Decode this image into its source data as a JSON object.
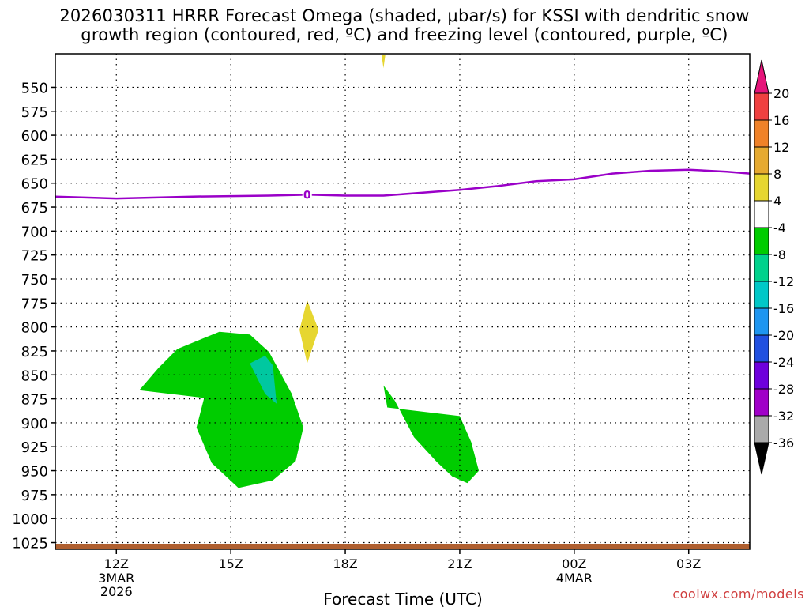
{
  "chart_data": {
    "type": "heatmap",
    "title_lines": [
      "2026030311 HRRR Forecast Omega (shaded, μbar/s) for KSSI with dendritic snow",
      "growth region (contoured, red, ºC) and freezing level (contoured, purple, ºC)"
    ],
    "xlabel": "Forecast Time (UTC)",
    "ylabel": "",
    "x_range_hours": [
      -1.6,
      16.6
    ],
    "y_range_mb": [
      515,
      1032
    ],
    "x_ticks": [
      {
        "hour": 0,
        "label": "12Z",
        "sub": [
          "3MAR",
          "2026"
        ]
      },
      {
        "hour": 3,
        "label": "15Z",
        "sub": []
      },
      {
        "hour": 6,
        "label": "18Z",
        "sub": []
      },
      {
        "hour": 9,
        "label": "21Z",
        "sub": []
      },
      {
        "hour": 12,
        "label": "00Z",
        "sub": [
          "4MAR"
        ]
      },
      {
        "hour": 15,
        "label": "03Z",
        "sub": []
      }
    ],
    "y_ticks": [
      550,
      575,
      600,
      625,
      650,
      675,
      700,
      725,
      750,
      775,
      800,
      825,
      850,
      875,
      900,
      925,
      950,
      975,
      1000,
      1025
    ],
    "grid": true,
    "freezing_level": {
      "label": "0",
      "color": "#9a00c8",
      "points": [
        {
          "hour": -1.6,
          "mb": 664
        },
        {
          "hour": 0,
          "mb": 666
        },
        {
          "hour": 2,
          "mb": 664
        },
        {
          "hour": 4,
          "mb": 663
        },
        {
          "hour": 5,
          "mb": 662
        },
        {
          "hour": 6,
          "mb": 663
        },
        {
          "hour": 7,
          "mb": 663
        },
        {
          "hour": 8,
          "mb": 660
        },
        {
          "hour": 9,
          "mb": 657
        },
        {
          "hour": 10,
          "mb": 653
        },
        {
          "hour": 11,
          "mb": 648
        },
        {
          "hour": 12,
          "mb": 646
        },
        {
          "hour": 13,
          "mb": 640
        },
        {
          "hour": 14,
          "mb": 637
        },
        {
          "hour": 15,
          "mb": 636
        },
        {
          "hour": 16,
          "mb": 638
        },
        {
          "hour": 16.6,
          "mb": 640
        }
      ],
      "label_at": {
        "hour": 5,
        "mb": 662
      }
    },
    "omega_regions": [
      {
        "value_bin": "-8 to -4",
        "color": "#00cc00",
        "points": [
          [
            0.6,
            866
          ],
          [
            1.1,
            843
          ],
          [
            1.6,
            823
          ],
          [
            2.7,
            805
          ],
          [
            3.5,
            808
          ],
          [
            4.0,
            826
          ],
          [
            4.6,
            870
          ],
          [
            4.9,
            905
          ],
          [
            4.7,
            940
          ],
          [
            4.1,
            960
          ],
          [
            3.2,
            968
          ],
          [
            2.5,
            942
          ],
          [
            2.1,
            905
          ],
          [
            2.3,
            874
          ]
        ]
      },
      {
        "value_bin": "-12 to -8",
        "color": "#00c8a0",
        "points": [
          [
            3.5,
            838
          ],
          [
            3.9,
            830
          ],
          [
            4.1,
            840
          ],
          [
            4.2,
            880
          ],
          [
            3.9,
            870
          ]
        ]
      },
      {
        "value_bin": "-8 to -4",
        "color": "#00cc00",
        "points": [
          [
            7.0,
            861
          ],
          [
            7.3,
            877
          ],
          [
            7.8,
            915
          ],
          [
            8.4,
            941
          ],
          [
            8.8,
            956
          ],
          [
            9.2,
            963
          ],
          [
            9.5,
            950
          ],
          [
            9.3,
            920
          ],
          [
            9.0,
            893
          ],
          [
            7.1,
            884
          ]
        ]
      },
      {
        "value_bin": "4 to 8",
        "color": "#e6d630",
        "points": [
          [
            5.0,
            772
          ],
          [
            5.3,
            803
          ],
          [
            5.0,
            838
          ],
          [
            4.8,
            803
          ]
        ]
      },
      {
        "value_bin": "4 to 8",
        "color": "#e6d630",
        "points": [
          [
            6.95,
            516
          ],
          [
            7.05,
            516
          ],
          [
            7.0,
            530
          ]
        ]
      }
    ],
    "colorbar": {
      "bins": [
        {
          "color": "#000000",
          "type": "arrow-low"
        },
        {
          "color": "#aaaaaa"
        },
        {
          "color": "#a000c8"
        },
        {
          "color": "#6e00dc"
        },
        {
          "color": "#2050e0"
        },
        {
          "color": "#1e96f0"
        },
        {
          "color": "#00c8c8"
        },
        {
          "color": "#00d28c"
        },
        {
          "color": "#00cc00"
        },
        {
          "color": "#ffffff"
        },
        {
          "color": "#e6d630"
        },
        {
          "color": "#e6aa30"
        },
        {
          "color": "#f08228"
        },
        {
          "color": "#f04040"
        },
        {
          "color": "#e6147a",
          "type": "arrow-high"
        }
      ],
      "labels": [
        "-36",
        "-32",
        "-28",
        "-24",
        "-20",
        "-16",
        "-12",
        "-8",
        "-4",
        "4",
        "8",
        "12",
        "16",
        "20"
      ]
    },
    "ground_color": "#b06030"
  },
  "credit": "coolwx.com/models"
}
